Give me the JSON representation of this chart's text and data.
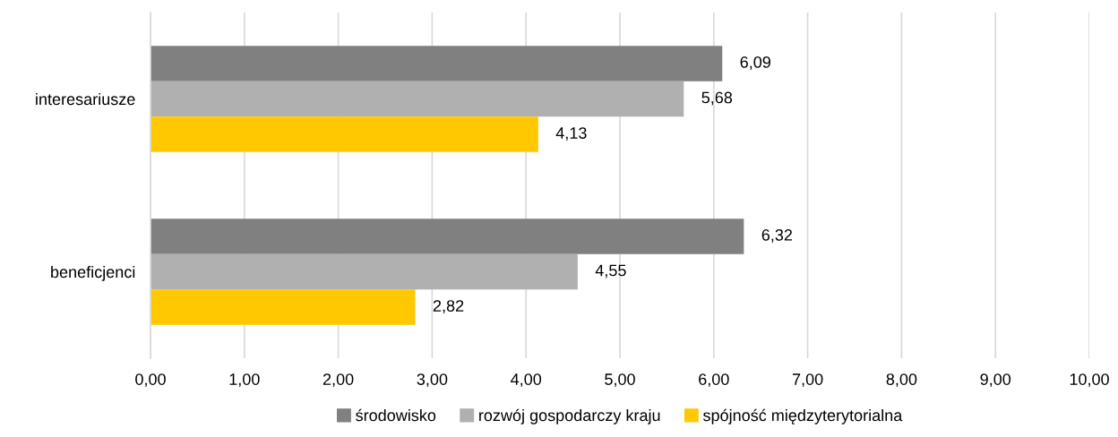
{
  "chart_data": {
    "type": "bar",
    "orientation": "horizontal",
    "categories": [
      "interesariusze",
      "beneficjenci"
    ],
    "series": [
      {
        "name": "środowisko",
        "color": "#808080",
        "values": [
          6.09,
          6.32
        ],
        "value_labels": [
          "6,09",
          "6,32"
        ]
      },
      {
        "name": "rozwój gospodarczy kraju",
        "color": "#b0b0b0",
        "values": [
          5.68,
          4.55
        ],
        "value_labels": [
          "5,68",
          "4,55"
        ]
      },
      {
        "name": "spójność międzyterytorialna",
        "color": "#ffc800",
        "values": [
          4.13,
          2.82
        ],
        "value_labels": [
          "4,13",
          "2,82"
        ]
      }
    ],
    "xlim": [
      0,
      10
    ],
    "xticks": [
      {
        "value": 0,
        "label": "0,00"
      },
      {
        "value": 1,
        "label": "1,00"
      },
      {
        "value": 2,
        "label": "2,00"
      },
      {
        "value": 3,
        "label": "3,00"
      },
      {
        "value": 4,
        "label": "4,00"
      },
      {
        "value": 5,
        "label": "5,00"
      },
      {
        "value": 6,
        "label": "6,00"
      },
      {
        "value": 7,
        "label": "7,00"
      },
      {
        "value": 8,
        "label": "8,00"
      },
      {
        "value": 9,
        "label": "9,00"
      },
      {
        "value": 10,
        "label": "10,00"
      }
    ],
    "grid": "x",
    "legend": "bottom"
  }
}
